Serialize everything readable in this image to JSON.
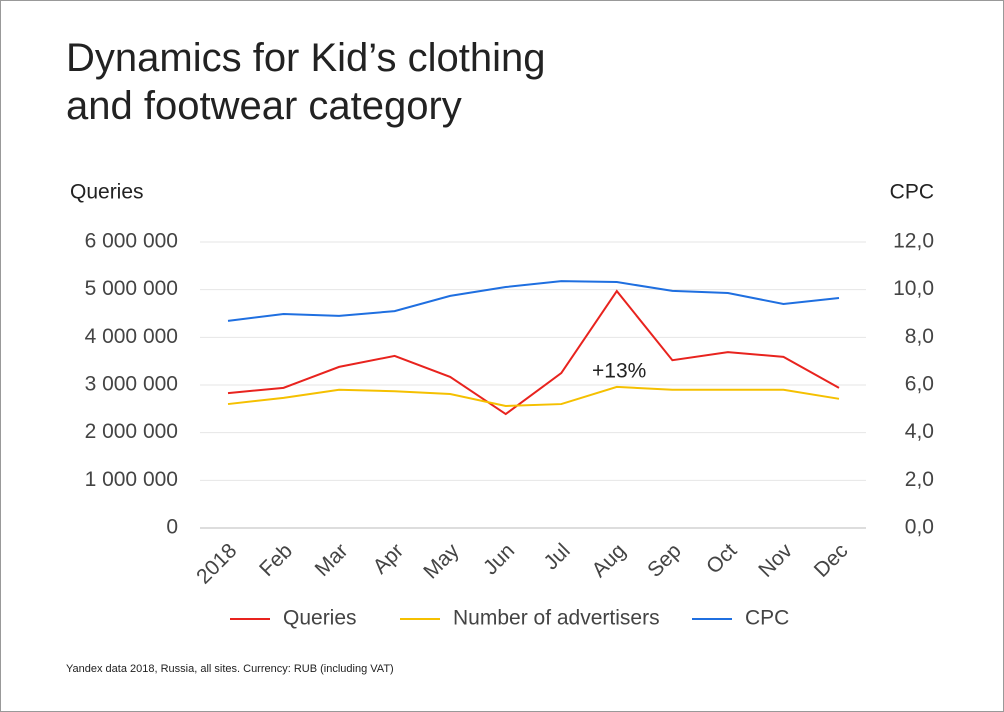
{
  "chart_data": {
    "type": "line",
    "title": "Dynamics for Kid’s clothing and footwear category",
    "y_label": "Queries",
    "y2_label": "CPC",
    "categories": [
      "2018",
      "Feb",
      "Mar",
      "Apr",
      "May",
      "Jun",
      "Jul",
      "Aug",
      "Sep",
      "Oct",
      "Nov",
      "Dec"
    ],
    "series": [
      {
        "name": "Queries",
        "color": "#e8231e",
        "values": [
          2830000,
          2940000,
          3380000,
          3610000,
          3170000,
          2390000,
          3250000,
          4970000,
          3520000,
          3690000,
          3590000,
          2940000
        ]
      },
      {
        "name": "Number of advertisers",
        "color": "#f5c000",
        "values": [
          2600000,
          2730000,
          2900000,
          2870000,
          2810000,
          2560000,
          2600000,
          2960000,
          2900000,
          2900000,
          2900000,
          2710000
        ]
      },
      {
        "name": "CPC",
        "color": "#1f6fe0",
        "axis": "y2",
        "values": [
          8.69,
          8.98,
          8.9,
          9.1,
          9.74,
          10.11,
          10.36,
          10.32,
          9.95,
          9.86,
          9.4,
          9.65
        ]
      }
    ],
    "ylim": [
      0,
      6000000
    ],
    "yticks": [
      0,
      {
        "value": 1000000,
        "label": "1 000 000"
      },
      {
        "value": 2000000,
        "label": "2 000 000"
      },
      {
        "value": 3000000,
        "label": "3 000 000"
      },
      {
        "value": 4000000,
        "label": "4 000 000"
      },
      {
        "value": 5000000,
        "label": "5 000 000"
      },
      {
        "value": 6000000,
        "label": "6 000 000"
      }
    ],
    "y2lim": [
      0,
      12
    ],
    "y2ticks": [
      {
        "value": 0,
        "label": "0,0"
      },
      {
        "value": 2,
        "label": "2,0"
      },
      {
        "value": 4,
        "label": "4,0"
      },
      {
        "value": 6,
        "label": "6,0"
      },
      {
        "value": 8,
        "label": "8,0"
      },
      {
        "value": 10,
        "label": "10,0"
      },
      {
        "value": 12,
        "label": "12,0"
      }
    ],
    "grid": true,
    "legend": "bottom",
    "annotation": "+13%",
    "footnote": "Yandex data 2018, Russia, all sites. Currency: RUB (including VAT)"
  }
}
